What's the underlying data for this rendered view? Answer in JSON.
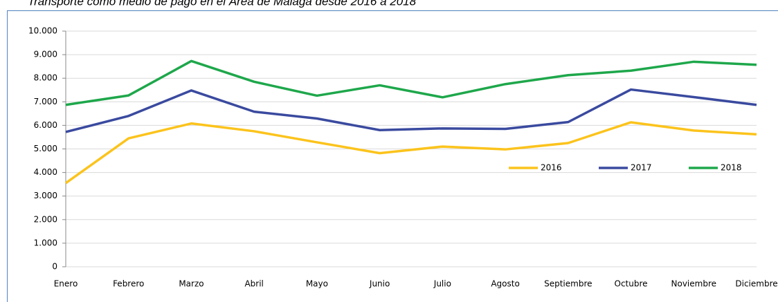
{
  "chart_data": {
    "type": "line",
    "title": "Transporte como medio de pago en el Área de Málaga desde 2016 a 2018",
    "categories": [
      "Enero",
      "Febrero",
      "Marzo",
      "Abril",
      "Mayo",
      "Junio",
      "Julio",
      "Agosto",
      "Septiembre",
      "Octubre",
      "Noviembre",
      "Diciembre"
    ],
    "series": [
      {
        "name": "2016",
        "color": "#fbc31c",
        "values": [
          3550,
          5450,
          6080,
          5750,
          5280,
          4820,
          5100,
          4980,
          5250,
          6130,
          5780,
          5620
        ]
      },
      {
        "name": "2017",
        "color": "#3a4a9f",
        "values": [
          5720,
          6400,
          7480,
          6580,
          6290,
          5800,
          5870,
          5850,
          6140,
          7520,
          7200,
          6870
        ]
      },
      {
        "name": "2018",
        "color": "#1ea74b",
        "values": [
          6870,
          7270,
          8730,
          7850,
          7260,
          7700,
          7190,
          7750,
          8130,
          8320,
          8700,
          8570
        ]
      }
    ],
    "ylim": [
      0,
      10000
    ],
    "yticks": [
      0,
      {
        "value": 1000,
        "label": "1.000"
      },
      {
        "value": 2000,
        "label": "2.000"
      },
      {
        "value": 3000,
        "label": "3.000"
      },
      {
        "value": 4000,
        "label": "4.000"
      },
      {
        "value": 5000,
        "label": "5.000"
      },
      {
        "value": 6000,
        "label": "6.000"
      },
      {
        "value": 7000,
        "label": "7.000"
      },
      {
        "value": 8000,
        "label": "8.000"
      },
      {
        "value": 9000,
        "label": "9.000"
      },
      {
        "value": 10000,
        "label": "10.000"
      }
    ],
    "grid": true,
    "legend": "right"
  }
}
